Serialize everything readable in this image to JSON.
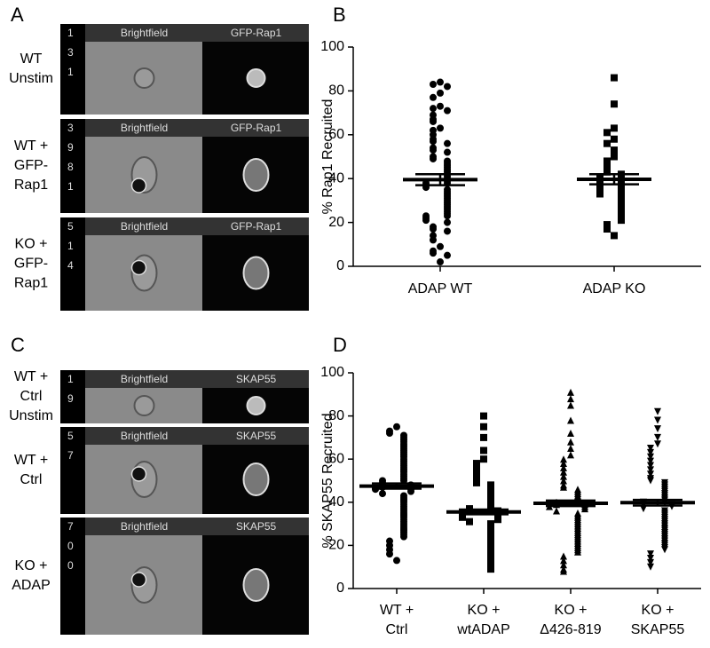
{
  "panels": {
    "A": {
      "letter": "A",
      "columns": [
        "Brightfield",
        "GFP-Rap1"
      ],
      "rows": [
        {
          "id": [
            "1",
            "3",
            "1"
          ],
          "label": [
            "WT",
            "Unstim"
          ]
        },
        {
          "id": [
            "3",
            "9",
            "8",
            "1"
          ],
          "label": [
            "WT +",
            "GFP-",
            "Rap1"
          ]
        },
        {
          "id": [
            "5",
            "1",
            "4"
          ],
          "label": [
            "KO +",
            "GFP-",
            "Rap1"
          ]
        }
      ]
    },
    "C": {
      "letter": "C",
      "columns": [
        "Brightfield",
        "SKAP55"
      ],
      "rows": [
        {
          "id": [
            "1",
            "9"
          ],
          "label": [
            "WT +",
            "Ctrl",
            "Unstim"
          ]
        },
        {
          "id": [
            "5",
            "7"
          ],
          "label": [
            "WT +",
            "Ctrl"
          ]
        },
        {
          "id": [
            "7",
            "0",
            "0"
          ],
          "label": [
            "KO +",
            "ADAP"
          ]
        }
      ]
    }
  },
  "chart_data": [
    {
      "type": "dotplot",
      "letter": "B",
      "y_label": "% Rap1 Recruited",
      "ylim": [
        0,
        100
      ],
      "yticks": [
        0,
        20,
        40,
        60,
        80,
        100
      ],
      "color": "#000000",
      "categories": [
        [
          "ADAP WT"
        ],
        [
          "ADAP KO"
        ]
      ],
      "groups": [
        {
          "marker": "circle",
          "mean": 39.5,
          "sem": 2.5,
          "values": [
            84,
            83,
            82,
            79,
            77,
            73,
            72,
            71,
            69,
            67,
            66,
            63,
            62,
            60,
            58,
            57,
            56,
            54,
            53,
            52,
            50,
            49,
            48,
            47,
            46,
            45,
            44,
            43,
            42,
            41,
            40,
            39,
            38,
            38,
            37,
            36,
            35,
            34,
            33,
            32,
            31,
            30,
            29,
            28,
            27,
            26,
            25,
            24,
            23,
            23,
            22,
            21,
            20,
            18,
            17,
            16,
            14,
            12,
            9,
            7,
            6,
            5,
            2
          ]
        },
        {
          "marker": "square",
          "mean": 39.7,
          "sem": 2.3,
          "values": [
            86,
            74,
            63,
            61,
            58,
            56,
            53,
            50,
            48,
            46,
            44,
            43,
            42,
            41,
            40,
            40,
            39,
            38,
            37,
            36,
            35,
            35,
            34,
            33,
            32,
            31,
            30,
            29,
            28,
            27,
            26,
            25,
            24,
            23,
            22,
            21,
            19,
            17,
            14
          ]
        }
      ]
    },
    {
      "type": "dotplot",
      "letter": "D",
      "y_label": "% SKAP55 Recruited",
      "ylim": [
        0,
        100
      ],
      "yticks": [
        0,
        20,
        40,
        60,
        80,
        100
      ],
      "color": "#000000",
      "categories": [
        [
          "WT +",
          "Ctrl"
        ],
        [
          "KO +",
          "wtADAP"
        ],
        [
          "KO +",
          "Δ426-819"
        ],
        [
          "KO +",
          "SKAP55"
        ]
      ],
      "groups": [
        {
          "marker": "circle",
          "mean": 47.5,
          "sem": 1.2,
          "values": [
            75,
            73,
            72,
            71,
            70,
            69,
            68,
            67,
            66,
            65,
            64,
            63,
            62,
            61,
            60,
            59,
            58,
            57,
            56,
            55,
            54,
            53,
            52,
            51,
            50,
            50,
            49,
            48,
            48,
            47,
            47,
            46,
            46,
            45,
            44,
            43,
            42,
            41,
            40,
            39,
            38,
            37,
            36,
            35,
            34,
            33,
            32,
            31,
            30,
            29,
            28,
            27,
            26,
            25,
            24,
            22,
            20,
            18,
            16,
            13
          ]
        },
        {
          "marker": "square",
          "mean": 35.5,
          "sem": 1.1,
          "values": [
            80,
            75,
            70,
            64,
            60,
            58,
            56,
            54,
            52,
            50,
            49,
            48,
            47,
            46,
            45,
            44,
            43,
            42,
            41,
            40,
            39,
            38,
            37,
            37,
            36,
            36,
            35,
            35,
            34,
            34,
            33,
            33,
            32,
            31,
            30,
            29,
            28,
            27,
            26,
            25,
            24,
            23,
            22,
            21,
            20,
            19,
            18,
            17,
            16,
            15,
            14,
            13,
            12,
            11,
            10,
            9
          ]
        },
        {
          "marker": "triangle-up",
          "mean": 39.5,
          "sem": 1.3,
          "values": [
            91,
            88,
            85,
            78,
            72,
            68,
            65,
            62,
            60,
            58,
            56,
            54,
            52,
            50,
            48,
            47,
            46,
            45,
            44,
            43,
            42,
            41,
            40,
            40,
            39,
            39,
            38,
            38,
            37,
            36,
            35,
            34,
            33,
            32,
            31,
            30,
            29,
            28,
            27,
            26,
            25,
            24,
            23,
            22,
            21,
            20,
            19,
            18,
            17,
            15,
            13,
            11,
            9,
            8
          ]
        },
        {
          "marker": "triangle-down",
          "mean": 39.8,
          "sem": 1.3,
          "values": [
            82,
            78,
            74,
            70,
            67,
            65,
            63,
            61,
            59,
            57,
            55,
            53,
            51,
            50,
            49,
            48,
            47,
            46,
            45,
            44,
            43,
            42,
            41,
            40,
            40,
            39,
            39,
            38,
            37,
            36,
            35,
            34,
            33,
            32,
            31,
            30,
            29,
            28,
            27,
            26,
            25,
            24,
            23,
            22,
            21,
            20,
            19,
            18,
            16,
            14,
            12,
            10
          ]
        }
      ]
    }
  ]
}
